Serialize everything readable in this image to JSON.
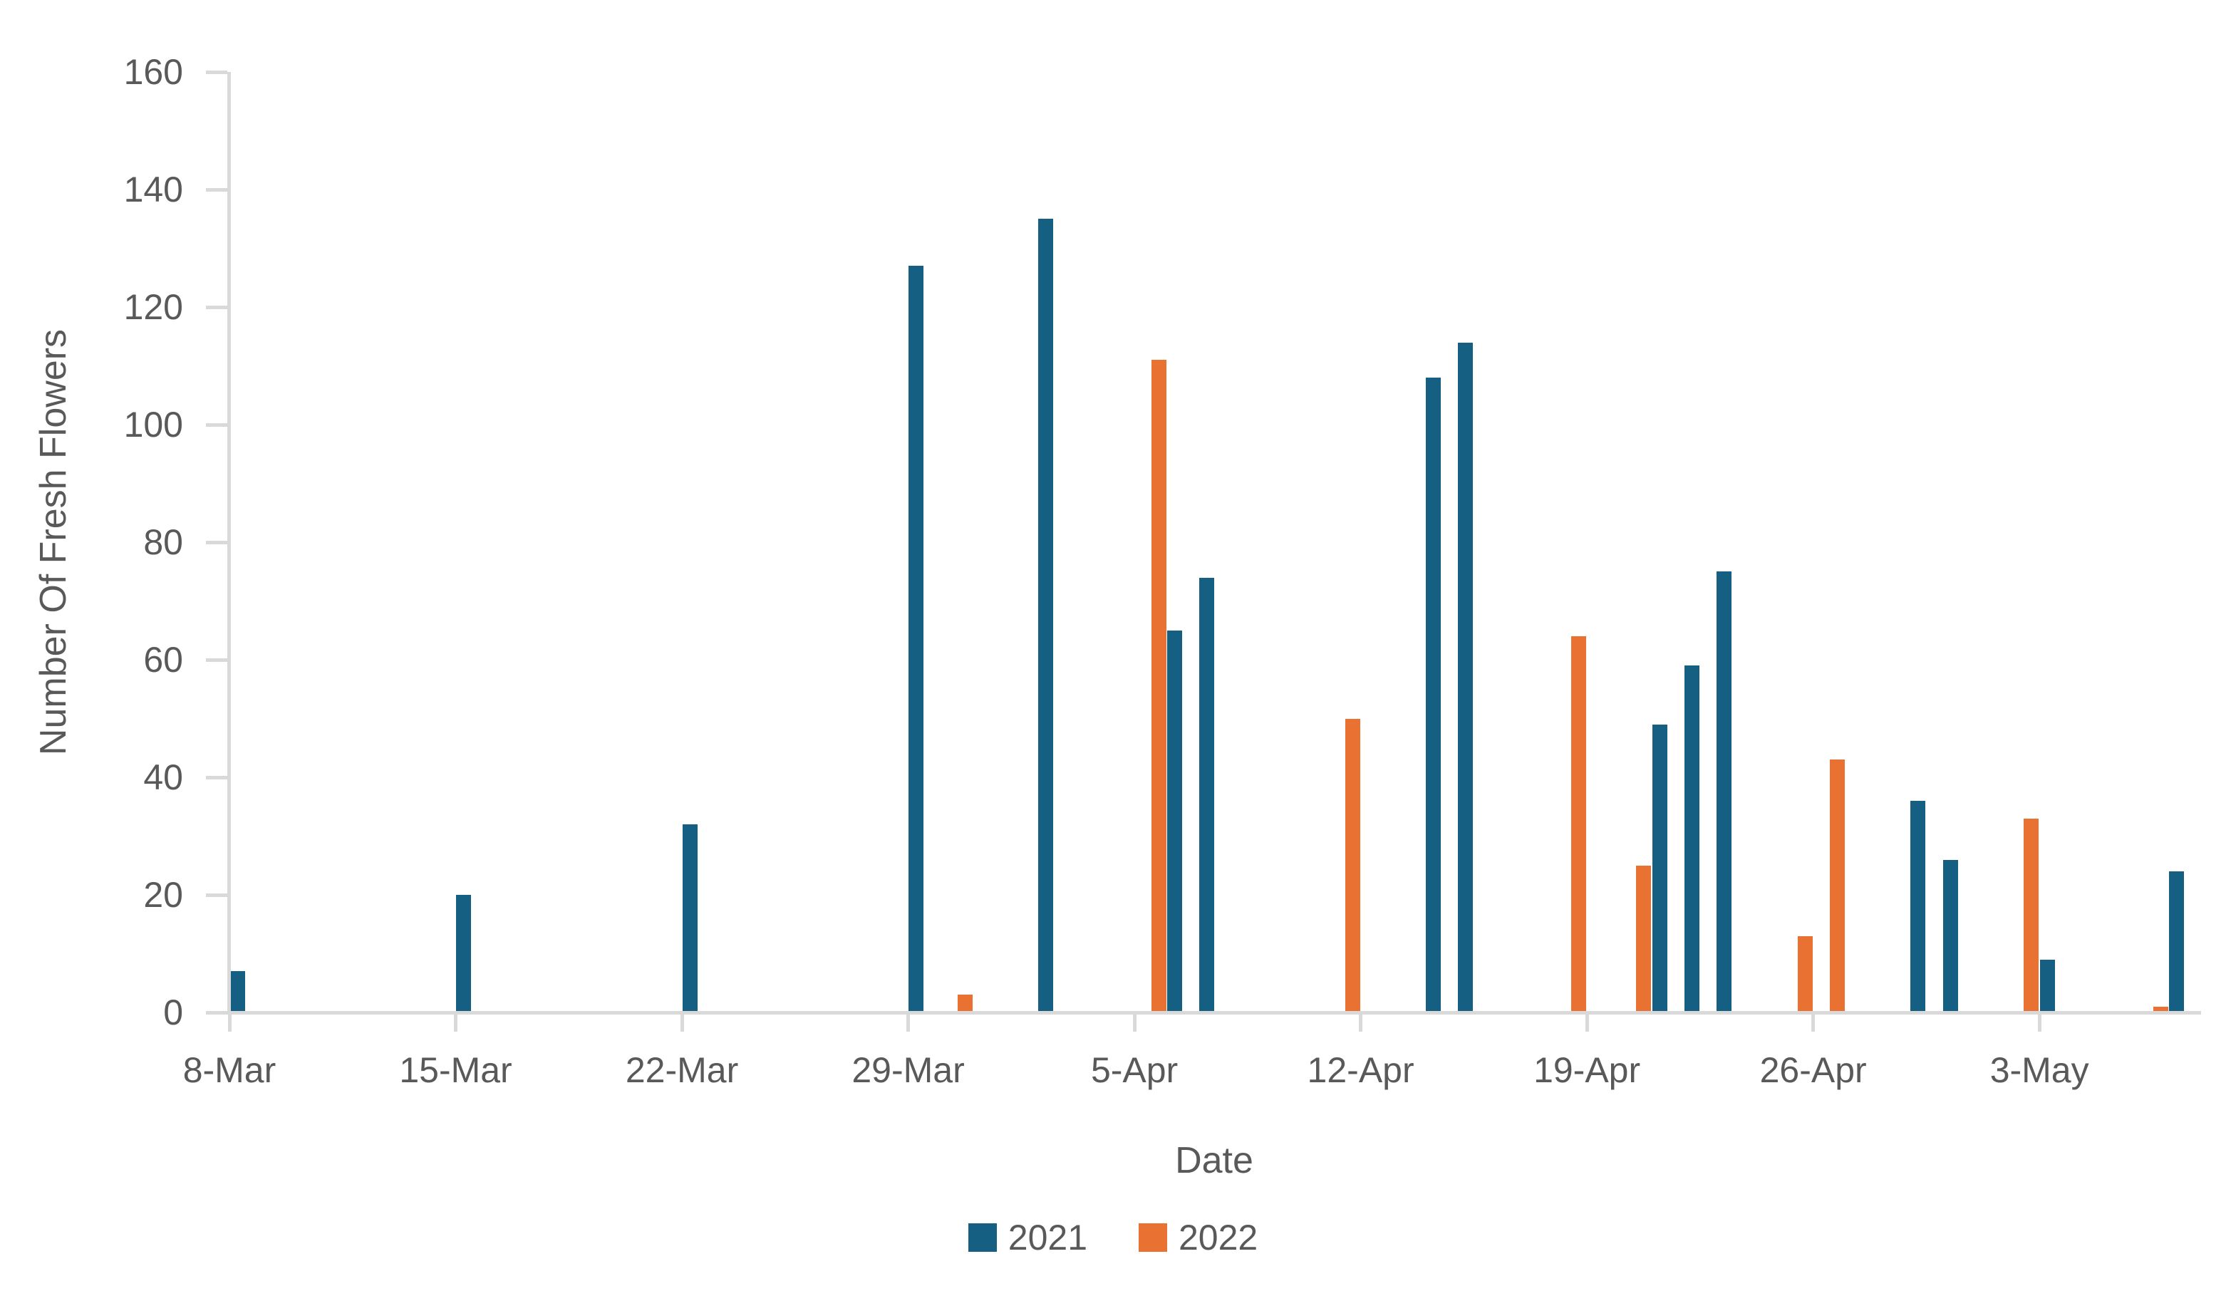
{
  "chart_data": {
    "type": "bar",
    "title": "",
    "xlabel": "Date",
    "ylabel": "Number Of Fresh Flowers",
    "ylim": [
      0,
      160
    ],
    "ytick_interval": 20,
    "ytick_labels": [
      "0",
      "20",
      "40",
      "60",
      "80",
      "100",
      "120",
      "140",
      "160"
    ],
    "xtick_labels": [
      "8-Mar",
      "15-Mar",
      "22-Mar",
      "29-Mar",
      "5-Apr",
      "12-Apr",
      "19-Apr",
      "26-Apr",
      "3-May"
    ],
    "xtick_day_offsets": [
      0,
      7,
      14,
      21,
      28,
      35,
      42,
      49,
      56
    ],
    "grid": "off",
    "legend_position": "bottom",
    "axis_color": "#d9d9d9",
    "text_color": "#595959",
    "series": [
      {
        "name": "2021",
        "color": "#156082",
        "points": [
          {
            "date": "8-Mar",
            "day_offset": 0,
            "value": 7
          },
          {
            "date": "15-Mar",
            "day_offset": 7,
            "value": 20
          },
          {
            "date": "22-Mar",
            "day_offset": 14,
            "value": 32
          },
          {
            "date": "29-Mar",
            "day_offset": 21,
            "value": 127
          },
          {
            "date": "2-Apr",
            "day_offset": 25,
            "value": 135
          },
          {
            "date": "6-Apr",
            "day_offset": 29,
            "value": 65
          },
          {
            "date": "7-Apr",
            "day_offset": 30,
            "value": 74
          },
          {
            "date": "14-Apr",
            "day_offset": 37,
            "value": 108
          },
          {
            "date": "15-Apr",
            "day_offset": 38,
            "value": 114
          },
          {
            "date": "21-Apr",
            "day_offset": 44,
            "value": 49
          },
          {
            "date": "22-Apr",
            "day_offset": 45,
            "value": 59
          },
          {
            "date": "23-Apr",
            "day_offset": 46,
            "value": 75
          },
          {
            "date": "29-Apr",
            "day_offset": 52,
            "value": 36
          },
          {
            "date": "30-Apr",
            "day_offset": 53,
            "value": 26
          },
          {
            "date": "3-May",
            "day_offset": 56,
            "value": 9
          },
          {
            "date": "7-May",
            "day_offset": 60,
            "value": 24
          }
        ]
      },
      {
        "name": "2022",
        "color": "#E97132",
        "points": [
          {
            "date": "30-Mar",
            "day_offset": 22,
            "value": 3
          },
          {
            "date": "5-Apr",
            "day_offset": 28,
            "value": 111
          },
          {
            "date": "11-Apr",
            "day_offset": 34,
            "value": 50
          },
          {
            "date": "18-Apr",
            "day_offset": 41,
            "value": 64
          },
          {
            "date": "20-Apr",
            "day_offset": 43,
            "value": 25
          },
          {
            "date": "25-Apr",
            "day_offset": 48,
            "value": 13
          },
          {
            "date": "26-Apr",
            "day_offset": 49,
            "value": 43
          },
          {
            "date": "2-May",
            "day_offset": 55,
            "value": 33
          },
          {
            "date": "6-May",
            "day_offset": 59,
            "value": 1
          }
        ]
      }
    ]
  }
}
